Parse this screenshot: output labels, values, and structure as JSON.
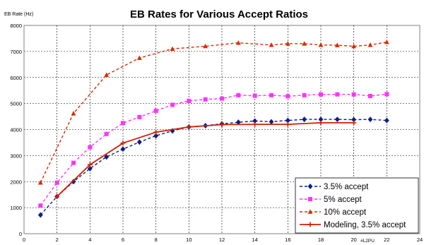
{
  "chart_data": {
    "type": "line",
    "title": "EB Rates for Various Accept Ratios",
    "ylabel": "EB Rate (Hz)",
    "xunit_label": "#L2PU",
    "xlim": [
      0,
      24
    ],
    "ylim": [
      0,
      8000
    ],
    "x_ticks": [
      "0",
      "2",
      "4",
      "6",
      "8",
      "10",
      "12",
      "14",
      "16",
      "18",
      "20",
      "22",
      "24"
    ],
    "y_ticks": [
      "0",
      "1000",
      "2000",
      "3000",
      "4000",
      "5000",
      "6000",
      "7000",
      "8000"
    ],
    "grid": true,
    "legend_position": "bottom-right",
    "series": [
      {
        "name": "3.5% accept",
        "color": "#0a1e8c",
        "dashed": true,
        "marker": "diamond",
        "x": [
          1,
          2,
          3,
          4,
          5,
          6,
          7,
          8,
          9,
          10,
          11,
          12,
          13,
          14,
          15,
          16,
          17,
          18,
          19,
          20,
          21,
          22
        ],
        "y": [
          720,
          1430,
          2000,
          2500,
          2950,
          3250,
          3520,
          3760,
          3950,
          4100,
          4150,
          4220,
          4280,
          4330,
          4300,
          4350,
          4390,
          4390,
          4390,
          4380,
          4390,
          4350
        ]
      },
      {
        "name": "5% accept",
        "color": "#ff33ff",
        "dashed": true,
        "marker": "square",
        "x": [
          1,
          2,
          3,
          4,
          5,
          6,
          7,
          8,
          9,
          10,
          11,
          12,
          13,
          14,
          15,
          16,
          17,
          18,
          19,
          20,
          21,
          22
        ],
        "y": [
          1080,
          1960,
          2720,
          3320,
          3830,
          4250,
          4480,
          4720,
          4950,
          5100,
          5160,
          5190,
          5320,
          5300,
          5320,
          5280,
          5320,
          5350,
          5350,
          5350,
          5290,
          5360
        ]
      },
      {
        "name": "10% accept",
        "color": "#dd2a00",
        "dashed": true,
        "marker": "triangle",
        "x": [
          1,
          3,
          5,
          7,
          9,
          11,
          13,
          15,
          16,
          17,
          18,
          19,
          20,
          21,
          22
        ],
        "y": [
          1960,
          4620,
          6100,
          6750,
          7100,
          7200,
          7330,
          7250,
          7300,
          7300,
          7250,
          7240,
          7200,
          7250,
          7360
        ]
      },
      {
        "name": "Modeling, 3.5% accept",
        "color": "#d41e00",
        "dashed": false,
        "marker": "plus",
        "x": [
          2,
          4,
          6,
          8,
          10,
          12,
          14,
          16,
          18,
          20
        ],
        "y": [
          1430,
          2650,
          3480,
          3900,
          4100,
          4190,
          4200,
          4200,
          4260,
          4260
        ]
      }
    ]
  }
}
